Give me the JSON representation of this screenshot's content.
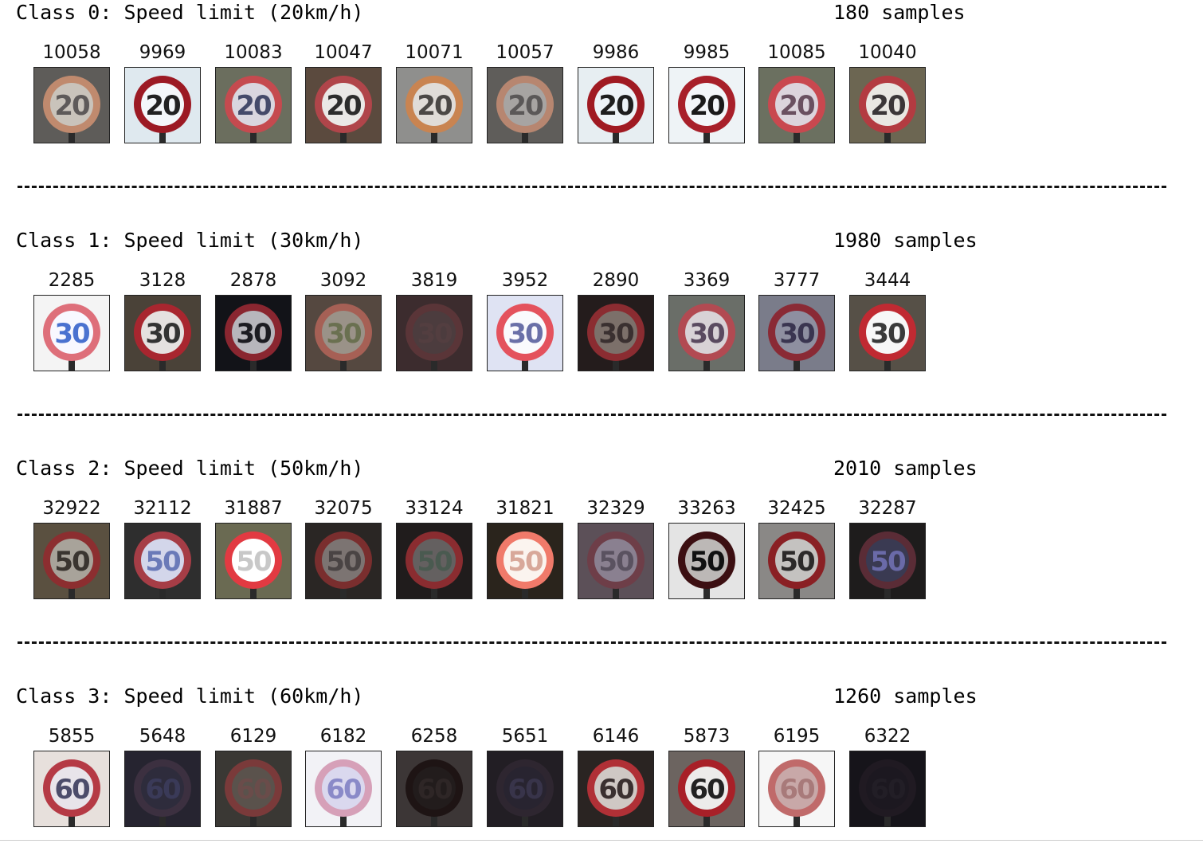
{
  "classes": [
    {
      "title": "Class 0: Speed limit (20km/h)",
      "samples": "180 samples",
      "images": [
        {
          "id": "10058",
          "sign": "20",
          "bg": "#5e5c59",
          "ring": "#c08a6e",
          "face": "#c9c3bb",
          "digit": "#5e5a5a"
        },
        {
          "id": "9969",
          "sign": "20",
          "bg": "#dfe9ef",
          "ring": "#9c1a24",
          "face": "#f4f7fa",
          "digit": "#222222"
        },
        {
          "id": "10083",
          "sign": "20",
          "bg": "#6b6e5e",
          "ring": "#c54a4f",
          "face": "#d9d6df",
          "digit": "#444a6a"
        },
        {
          "id": "10047",
          "sign": "20",
          "bg": "#5b4a3e",
          "ring": "#b0454a",
          "face": "#eae8e6",
          "digit": "#2c2c2c"
        },
        {
          "id": "10071",
          "sign": "20",
          "bg": "#8f8f8d",
          "ring": "#c98451",
          "face": "#e0dcd8",
          "digit": "#4b4846"
        },
        {
          "id": "10057",
          "sign": "20",
          "bg": "#5f5d5a",
          "ring": "#b78670",
          "face": "#a7a4a2",
          "digit": "#5b5858"
        },
        {
          "id": "9986",
          "sign": "20",
          "bg": "#e7eef2",
          "ring": "#a01a22",
          "face": "#edf3f7",
          "digit": "#1e1e1e"
        },
        {
          "id": "9985",
          "sign": "20",
          "bg": "#eef3f6",
          "ring": "#a8202a",
          "face": "#f3f6f9",
          "digit": "#1a1a1a"
        },
        {
          "id": "10085",
          "sign": "20",
          "bg": "#6b7060",
          "ring": "#c9484f",
          "face": "#dcd4dc",
          "digit": "#6a5060"
        },
        {
          "id": "10040",
          "sign": "20",
          "bg": "#6c6652",
          "ring": "#b33b41",
          "face": "#e9e7e2",
          "digit": "#3b3638"
        }
      ]
    },
    {
      "title": "Class 1: Speed limit (30km/h)",
      "samples": "1980 samples",
      "images": [
        {
          "id": "2285",
          "sign": "30",
          "bg": "#f4f4f4",
          "ring": "#de6f7a",
          "face": "#f8f8ff",
          "digit": "#4a72d0"
        },
        {
          "id": "3128",
          "sign": "30",
          "bg": "#4a4238",
          "ring": "#a8262f",
          "face": "#e5e1e0",
          "digit": "#333333"
        },
        {
          "id": "2878",
          "sign": "30",
          "bg": "#121318",
          "ring": "#8a2630",
          "face": "#b7b6bc",
          "digit": "#1c1c22"
        },
        {
          "id": "3092",
          "sign": "30",
          "bg": "#554840",
          "ring": "#a66055",
          "face": "#9a9288",
          "digit": "#6a7050"
        },
        {
          "id": "3819",
          "sign": "30",
          "bg": "#3c2c2e",
          "ring": "#5a3538",
          "face": "#4c3c3e",
          "digit": "#533e40"
        },
        {
          "id": "3952",
          "sign": "30",
          "bg": "#dfe3f3",
          "ring": "#e4525d",
          "face": "#fafafd",
          "digit": "#6a70a8"
        },
        {
          "id": "2890",
          "sign": "30",
          "bg": "#241c1c",
          "ring": "#8b2c31",
          "face": "#7c706a",
          "digit": "#3a3030"
        },
        {
          "id": "3369",
          "sign": "30",
          "bg": "#6a6e68",
          "ring": "#b24a52",
          "face": "#d8d2d6",
          "digit": "#5a4a60"
        },
        {
          "id": "3777",
          "sign": "30",
          "bg": "#7a7c8a",
          "ring": "#8a2a35",
          "face": "#8e8fa0",
          "digit": "#3a3550"
        },
        {
          "id": "3444",
          "sign": "30",
          "bg": "#565047",
          "ring": "#c02a32",
          "face": "#f7f7f7",
          "digit": "#3a3a3a"
        }
      ]
    },
    {
      "title": "Class 2: Speed limit (50km/h)",
      "samples": "2010 samples",
      "images": [
        {
          "id": "32922",
          "sign": "50",
          "bg": "#5a5040",
          "ring": "#8c2e30",
          "face": "#a8a39a",
          "digit": "#3a3530"
        },
        {
          "id": "32112",
          "sign": "50",
          "bg": "#2e2e2e",
          "ring": "#a63d46",
          "face": "#d3d6ea",
          "digit": "#6a7ab8"
        },
        {
          "id": "31887",
          "sign": "50",
          "bg": "#6a6a52",
          "ring": "#e23a42",
          "face": "#ffffff",
          "digit": "#c8c8c8"
        },
        {
          "id": "32075",
          "sign": "50",
          "bg": "#2a2624",
          "ring": "#7a2e2e",
          "face": "#7c7472",
          "digit": "#4a4444"
        },
        {
          "id": "33124",
          "sign": "50",
          "bg": "#201c1c",
          "ring": "#8a2c30",
          "face": "#646060",
          "digit": "#4a5a50"
        },
        {
          "id": "31821",
          "sign": "50",
          "bg": "#2a241c",
          "ring": "#f07a6a",
          "face": "#fbf4ef",
          "digit": "#d8a89a"
        },
        {
          "id": "32329",
          "sign": "50",
          "bg": "#5c5058",
          "ring": "#6e3e48",
          "face": "#8a8090",
          "digit": "#5a5260"
        },
        {
          "id": "33263",
          "sign": "50",
          "bg": "#e4e4e4",
          "ring": "#3c0f12",
          "face": "#bcb8b6",
          "digit": "#111111"
        },
        {
          "id": "32425",
          "sign": "50",
          "bg": "#8a8886",
          "ring": "#8a2024",
          "face": "#c4c2c0",
          "digit": "#2c2a2a"
        },
        {
          "id": "32287",
          "sign": "50",
          "bg": "#1e1c1c",
          "ring": "#5a2c36",
          "face": "#3a3a52",
          "digit": "#6a6aa8"
        }
      ]
    },
    {
      "title": "Class 3: Speed limit (60km/h)",
      "samples": "1260 samples",
      "images": [
        {
          "id": "5855",
          "sign": "60",
          "bg": "#e7e0dc",
          "ring": "#b53a45",
          "face": "#e8e4ea",
          "digit": "#4c4c6a"
        },
        {
          "id": "5648",
          "sign": "60",
          "bg": "#262430",
          "ring": "#3c3040",
          "face": "#2e2c3c",
          "digit": "#3a3a58"
        },
        {
          "id": "6129",
          "sign": "60",
          "bg": "#3a3834",
          "ring": "#7a3a3a",
          "face": "#5a524c",
          "digit": "#6a4c4a"
        },
        {
          "id": "6182",
          "sign": "60",
          "bg": "#f2f2f6",
          "ring": "#d6a0b8",
          "face": "#dad8ee",
          "digit": "#8a8ac8"
        },
        {
          "id": "6258",
          "sign": "60",
          "bg": "#3c3636",
          "ring": "#1e1414",
          "face": "#221c1c",
          "digit": "#2e2626"
        },
        {
          "id": "5651",
          "sign": "60",
          "bg": "#221e24",
          "ring": "#2e2630",
          "face": "#282430",
          "digit": "#38344a"
        },
        {
          "id": "6146",
          "sign": "60",
          "bg": "#2a2422",
          "ring": "#b03036",
          "face": "#cfc8c4",
          "digit": "#3a3030"
        },
        {
          "id": "5873",
          "sign": "60",
          "bg": "#6c6460",
          "ring": "#a82028",
          "face": "#ecebea",
          "digit": "#222222"
        },
        {
          "id": "6195",
          "sign": "60",
          "bg": "#f6f6f6",
          "ring": "#c06a6a",
          "face": "#c8a8a8",
          "digit": "#a87a7a"
        },
        {
          "id": "6322",
          "sign": "60",
          "bg": "#16141a",
          "ring": "#201a22",
          "face": "#1c1820",
          "digit": "#221e26"
        }
      ]
    }
  ]
}
